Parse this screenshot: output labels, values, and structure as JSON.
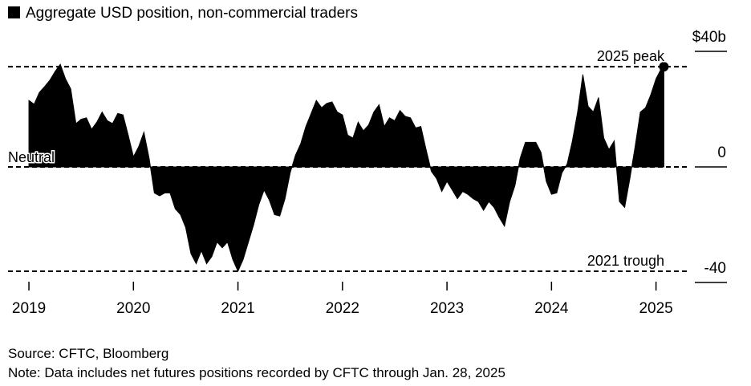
{
  "chart_data": {
    "type": "area",
    "title": "Aggregate USD position, non-commercial traders",
    "series": [
      {
        "name": "Aggregate USD position, non-commercial traders",
        "color": "#000000",
        "x": [
          2019.0,
          2019.05,
          2019.1,
          2019.15,
          2019.2,
          2019.25,
          2019.3,
          2019.35,
          2019.4,
          2019.45,
          2019.5,
          2019.55,
          2019.6,
          2019.65,
          2019.7,
          2019.75,
          2019.8,
          2019.85,
          2019.9,
          2019.95,
          2020.0,
          2020.05,
          2020.1,
          2020.15,
          2020.2,
          2020.25,
          2020.3,
          2020.35,
          2020.4,
          2020.45,
          2020.5,
          2020.55,
          2020.6,
          2020.65,
          2020.7,
          2020.75,
          2020.8,
          2020.85,
          2020.9,
          2020.95,
          2021.0,
          2021.05,
          2021.1,
          2021.15,
          2021.2,
          2021.25,
          2021.3,
          2021.35,
          2021.4,
          2021.45,
          2021.5,
          2021.55,
          2021.6,
          2021.65,
          2021.7,
          2021.75,
          2021.8,
          2021.85,
          2021.9,
          2021.95,
          2022.0,
          2022.05,
          2022.1,
          2022.15,
          2022.2,
          2022.25,
          2022.3,
          2022.35,
          2022.4,
          2022.45,
          2022.5,
          2022.55,
          2022.6,
          2022.65,
          2022.7,
          2022.75,
          2022.8,
          2022.85,
          2022.9,
          2022.95,
          2023.0,
          2023.05,
          2023.1,
          2023.15,
          2023.2,
          2023.25,
          2023.3,
          2023.35,
          2023.4,
          2023.45,
          2023.5,
          2023.55,
          2023.6,
          2023.65,
          2023.7,
          2023.75,
          2023.8,
          2023.85,
          2023.9,
          2023.95,
          2024.0,
          2024.05,
          2024.1,
          2024.15,
          2024.2,
          2024.25,
          2024.3,
          2024.35,
          2024.4,
          2024.45,
          2024.5,
          2024.55,
          2024.6,
          2024.65,
          2024.7,
          2024.75,
          2024.8,
          2024.85,
          2024.9,
          2024.95,
          2025.0,
          2025.05,
          2025.075
        ],
        "values": [
          23,
          21.7,
          25.8,
          27.8,
          30,
          33,
          35.5,
          30.5,
          27,
          15,
          16.5,
          17,
          13,
          15.5,
          19,
          16,
          15,
          18.5,
          18,
          11,
          3.5,
          7,
          12,
          3,
          -9,
          -10,
          -9,
          -9,
          -14.5,
          -16.5,
          -21,
          -30,
          -33.5,
          -29,
          -33.5,
          -31,
          -26,
          -28,
          -26,
          -32,
          -36.1,
          -32,
          -26,
          -20,
          -13,
          -8,
          -11.5,
          -16.5,
          -17,
          -11,
          -2,
          4,
          8,
          14,
          18.5,
          23,
          20.5,
          22,
          22.5,
          19,
          18,
          11,
          10,
          15.5,
          12.5,
          14.5,
          19,
          21.5,
          14,
          17,
          16,
          19.5,
          17.5,
          17,
          13.5,
          14,
          6,
          -1.5,
          -4,
          -8.5,
          -5,
          -8,
          -11,
          -8.5,
          -9.5,
          -11,
          -12,
          -15,
          -12,
          -14,
          -17.5,
          -20.5,
          -12,
          -6.5,
          3,
          8.5,
          8.5,
          8.5,
          5,
          -5,
          -9.5,
          -9,
          -2,
          1,
          9,
          19,
          32,
          21,
          19,
          24,
          10,
          6,
          9,
          -12,
          -14,
          -4,
          7,
          19,
          20.5,
          25,
          30.5,
          34,
          34.7
        ]
      }
    ],
    "reference_lines": [
      {
        "label": "2025 peak",
        "value": 34.7
      },
      {
        "label": "Neutral",
        "value": 0
      },
      {
        "label": "2021 trough",
        "value": -36.1
      }
    ],
    "xlim": [
      2018.8,
      2025.31
    ],
    "xticks": [
      2019,
      2020,
      2021,
      2022,
      2023,
      2024,
      2025
    ],
    "ylim": [
      -40,
      40
    ],
    "yticks": [
      {
        "value": 40,
        "label": "$40b"
      },
      0,
      -40
    ],
    "source": "Source: CFTC, Bloomberg",
    "note": "Note: Data includes net futures positions recorded by CFTC through Jan. 28, 2025"
  }
}
